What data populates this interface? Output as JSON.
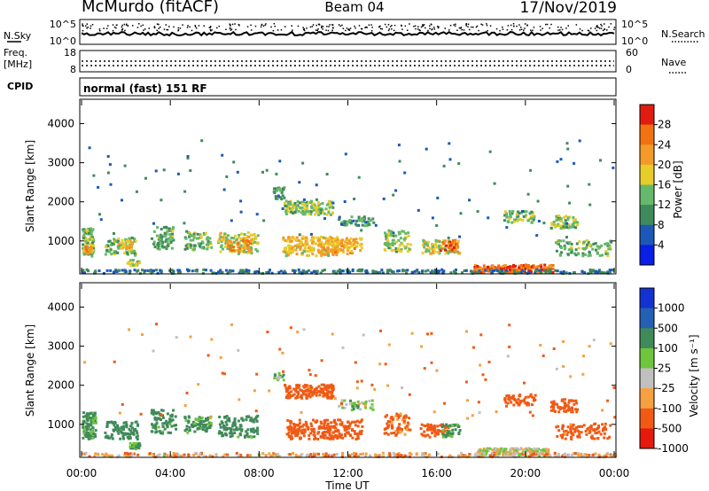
{
  "header": {
    "station": "McMurdo (fitACF)",
    "beam": "Beam 04",
    "date": "17/Nov/2019"
  },
  "top_panels": {
    "nsky_label": "N.Sky",
    "nsky_ticks": [
      "10^5",
      "10^0"
    ],
    "nsearch_label": "N.Search",
    "nsearch_ticks": [
      "10^5",
      "10^0"
    ],
    "freq_label": "Freq.",
    "freq_unit": "[MHz]",
    "freq_ticks": [
      "18",
      "8"
    ],
    "nave_label": "Nave",
    "nave_ticks": [
      "60",
      "0"
    ],
    "cpid_label": "CPID",
    "cpid_value": "normal (fast) 151 RF"
  },
  "colors": {
    "power_scale": [
      "#0a1ee6",
      "#1c58b8",
      "#3f8a5a",
      "#66b86a",
      "#e8cc2a",
      "#f39a2b",
      "#f07210",
      "#e01c10"
    ],
    "velocity_scale": [
      "#e51a0c",
      "#f05a14",
      "#f7a040",
      "#c0c0c0",
      "#6fc53c",
      "#3f8a5a",
      "#2460b4",
      "#1232d2"
    ]
  },
  "chart_data": [
    {
      "type": "heatmap",
      "ylabel": "Slant Range [km]",
      "xlabel": "",
      "ylim": [
        180,
        4600
      ],
      "y_ticks": [
        "1000",
        "2000",
        "3000",
        "4000"
      ],
      "colorbar": {
        "label": "Power [dB]",
        "ticks": [
          "4",
          "8",
          "12",
          "16",
          "20",
          "24",
          "28"
        ],
        "range": [
          0,
          32
        ]
      },
      "blobs": [
        {
          "t": [
            0.0,
            0.5
          ],
          "r": [
            640,
            1350
          ],
          "v": 14,
          "n": 90
        },
        {
          "t": [
            0.1,
            0.4
          ],
          "r": [
            700,
            900
          ],
          "v": 23,
          "n": 30
        },
        {
          "t": [
            1.0,
            2.4
          ],
          "r": [
            650,
            1100
          ],
          "v": 13,
          "n": 80
        },
        {
          "t": [
            1.6,
            2.3
          ],
          "r": [
            800,
            1050
          ],
          "v": 20,
          "n": 25
        },
        {
          "t": [
            2.0,
            2.6
          ],
          "r": [
            400,
            550
          ],
          "v": 15,
          "n": 25
        },
        {
          "t": [
            3.1,
            4.1
          ],
          "r": [
            800,
            1400
          ],
          "v": 13,
          "n": 70
        },
        {
          "t": [
            4.6,
            5.8
          ],
          "r": [
            800,
            1250
          ],
          "v": 14,
          "n": 70
        },
        {
          "t": [
            6.1,
            7.9
          ],
          "r": [
            700,
            1250
          ],
          "v": 17,
          "n": 110
        },
        {
          "t": [
            6.5,
            7.6
          ],
          "r": [
            760,
            1050
          ],
          "v": 24,
          "n": 35
        },
        {
          "t": [
            8.6,
            9.1
          ],
          "r": [
            2100,
            2400
          ],
          "v": 11,
          "n": 25
        },
        {
          "t": [
            9.1,
            11.3
          ],
          "r": [
            1700,
            2050
          ],
          "v": 15,
          "n": 140
        },
        {
          "t": [
            9.0,
            11.5
          ],
          "r": [
            650,
            1150
          ],
          "v": 19,
          "n": 170
        },
        {
          "t": [
            10.6,
            12.6
          ],
          "r": [
            700,
            1100
          ],
          "v": 21,
          "n": 110
        },
        {
          "t": [
            11.5,
            13.2
          ],
          "r": [
            1400,
            1650
          ],
          "v": 11,
          "n": 50
        },
        {
          "t": [
            13.6,
            14.8
          ],
          "r": [
            750,
            1300
          ],
          "v": 15,
          "n": 80
        },
        {
          "t": [
            15.2,
            17.0
          ],
          "r": [
            700,
            1050
          ],
          "v": 18,
          "n": 90
        },
        {
          "t": [
            16.1,
            16.9
          ],
          "r": [
            750,
            1050
          ],
          "v": 25,
          "n": 30
        },
        {
          "t": [
            17.6,
            21.2
          ],
          "r": [
            220,
            420
          ],
          "v": 26,
          "n": 190
        },
        {
          "t": [
            19.0,
            20.4
          ],
          "r": [
            1500,
            1800
          ],
          "v": 14,
          "n": 55
        },
        {
          "t": [
            21.1,
            22.3
          ],
          "r": [
            1350,
            1680
          ],
          "v": 15,
          "n": 60
        },
        {
          "t": [
            21.3,
            23.9
          ],
          "r": [
            650,
            1050
          ],
          "v": 13,
          "n": 90
        },
        {
          "t": [
            0.0,
            24.0
          ],
          "r": [
            200,
            300
          ],
          "v": 8,
          "n": 320
        }
      ],
      "scatter_noise": {
        "t": [
          0,
          24
        ],
        "r": [
          1100,
          3600
        ],
        "v": 8,
        "n": 110
      },
      "seed": 7
    },
    {
      "type": "heatmap",
      "ylabel": "Slant Range [km]",
      "xlabel": "Time UT",
      "ylim": [
        180,
        4600
      ],
      "y_ticks": [
        "1000",
        "2000",
        "3000",
        "4000"
      ],
      "x_ticks": [
        "00:00",
        "04:00",
        "08:00",
        "12:00",
        "16:00",
        "20:00",
        "00:00"
      ],
      "xlim": [
        0,
        24
      ],
      "colorbar": {
        "label": "Velocity [m s⁻¹]",
        "ticks": [
          "1000",
          "500",
          "100",
          "25",
          "-25",
          "-100",
          "-500",
          "-1000"
        ],
        "range": [
          -1400,
          1400
        ]
      },
      "blobs": [
        {
          "t": [
            0.0,
            0.6
          ],
          "r": [
            650,
            1350
          ],
          "v": 130,
          "n": 90
        },
        {
          "t": [
            1.0,
            2.5
          ],
          "r": [
            650,
            1100
          ],
          "v": 200,
          "n": 80
        },
        {
          "t": [
            2.1,
            2.6
          ],
          "r": [
            400,
            550
          ],
          "v": 120,
          "n": 25
        },
        {
          "t": [
            3.1,
            4.2
          ],
          "r": [
            800,
            1400
          ],
          "v": 180,
          "n": 70
        },
        {
          "t": [
            4.6,
            5.8
          ],
          "r": [
            800,
            1250
          ],
          "v": 160,
          "n": 70
        },
        {
          "t": [
            6.1,
            7.9
          ],
          "r": [
            700,
            1250
          ],
          "v": 170,
          "n": 110
        },
        {
          "t": [
            8.6,
            9.1
          ],
          "r": [
            2150,
            2350
          ],
          "v": 60,
          "n": 15
        },
        {
          "t": [
            9.1,
            11.3
          ],
          "r": [
            1700,
            2050
          ],
          "v": -200,
          "n": 140
        },
        {
          "t": [
            9.2,
            12.6
          ],
          "r": [
            650,
            1150
          ],
          "v": -250,
          "n": 220
        },
        {
          "t": [
            11.5,
            13.2
          ],
          "r": [
            1400,
            1650
          ],
          "v": 60,
          "n": 40
        },
        {
          "t": [
            13.6,
            14.8
          ],
          "r": [
            750,
            1300
          ],
          "v": -160,
          "n": 70
        },
        {
          "t": [
            15.2,
            16.5
          ],
          "r": [
            700,
            1050
          ],
          "v": -200,
          "n": 60
        },
        {
          "t": [
            16.2,
            17.0
          ],
          "r": [
            700,
            1050
          ],
          "v": 150,
          "n": 40
        },
        {
          "t": [
            17.8,
            21.0
          ],
          "r": [
            220,
            420
          ],
          "v": 0,
          "n": 180
        },
        {
          "t": [
            19.0,
            20.4
          ],
          "r": [
            1500,
            1800
          ],
          "v": -250,
          "n": 55
        },
        {
          "t": [
            21.1,
            22.3
          ],
          "r": [
            1350,
            1680
          ],
          "v": -220,
          "n": 60
        },
        {
          "t": [
            21.3,
            23.9
          ],
          "r": [
            650,
            1050
          ],
          "v": -180,
          "n": 90
        },
        {
          "t": [
            0.0,
            24.0
          ],
          "r": [
            200,
            300
          ],
          "v": -60,
          "n": 300
        }
      ],
      "scatter_noise": {
        "t": [
          0,
          24
        ],
        "r": [
          1100,
          3600
        ],
        "v": -90,
        "n": 110
      },
      "seed": 11
    }
  ]
}
